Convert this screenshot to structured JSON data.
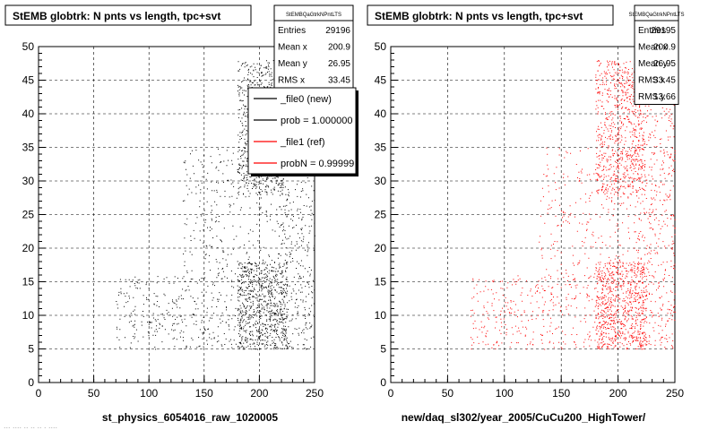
{
  "footer_text": "... .... .. .. .. . ....",
  "colors": {
    "ref_marker": "#000000",
    "new_marker": "#ff0000"
  },
  "chart_data": [
    {
      "type": "scatter",
      "title": "StEMB globtrk: N pnts vs length, tpc+svt",
      "xlabel": "st_physics_6054016_raw_1020005",
      "ylabel": "",
      "xlim": [
        0,
        250
      ],
      "ylim": [
        0,
        50
      ],
      "x_ticks": [
        "0",
        "50",
        "100",
        "150",
        "200",
        "250"
      ],
      "y_ticks": [
        "0",
        "5",
        "10",
        "15",
        "20",
        "25",
        "30",
        "35",
        "40",
        "45",
        "50"
      ],
      "grid": true,
      "marker_color": "#000000",
      "stats": {
        "header": "StEMBQaGtrkNPntLTS",
        "rows": [
          {
            "label": "Entries",
            "value": "29196"
          },
          {
            "label": "Mean x",
            "value": "200.9"
          },
          {
            "label": "Mean y",
            "value": "26.95"
          },
          {
            "label": "RMS x",
            "value": "33.45"
          }
        ]
      },
      "legend": {
        "placement": "top-right",
        "entries": [
          {
            "label": "_file0 (new)",
            "color": "#000000"
          },
          {
            "label": "prob = 1.000000",
            "color": "#000000"
          },
          {
            "label": "_file1 (ref)",
            "color": "#ff0000"
          },
          {
            "label": "probN = 0.99999",
            "color": "#ff0000"
          }
        ]
      },
      "density_regions": [
        {
          "x": [
            180,
            225
          ],
          "y": [
            5,
            18
          ],
          "weight": 0.3
        },
        {
          "x": [
            180,
            222
          ],
          "y": [
            28,
            48
          ],
          "weight": 0.28
        },
        {
          "x": [
            215,
            250
          ],
          "y": [
            5,
            46
          ],
          "weight": 0.2
        },
        {
          "x": [
            70,
            180
          ],
          "y": [
            5,
            16
          ],
          "weight": 0.12
        },
        {
          "x": [
            130,
            215
          ],
          "y": [
            15,
            35
          ],
          "weight": 0.1
        }
      ]
    },
    {
      "type": "scatter",
      "title": "StEMB globtrk: N pnts vs length, tpc+svt",
      "xlabel": "new/daq_sl302/year_2005/CuCu200_HighTower/",
      "ylabel": "",
      "xlim": [
        0,
        250
      ],
      "ylim": [
        0,
        50
      ],
      "x_ticks": [
        "0",
        "50",
        "100",
        "150",
        "200",
        "250"
      ],
      "y_ticks": [
        "0",
        "5",
        "10",
        "15",
        "20",
        "25",
        "30",
        "35",
        "40",
        "45",
        "50"
      ],
      "grid": true,
      "marker_color": "#ff0000",
      "stats": {
        "header": "StEMBQaGtrkNPntLTS",
        "rows": [
          {
            "label": "Entries",
            "value": "29195"
          },
          {
            "label": "Mean x",
            "value": "200.9"
          },
          {
            "label": "Mean y",
            "value": "26.95"
          },
          {
            "label": "RMS x",
            "value": "33.45"
          },
          {
            "label": "RMS y",
            "value": "13.66"
          }
        ]
      },
      "density_regions": [
        {
          "x": [
            180,
            225
          ],
          "y": [
            5,
            18
          ],
          "weight": 0.3
        },
        {
          "x": [
            180,
            222
          ],
          "y": [
            28,
            48
          ],
          "weight": 0.28
        },
        {
          "x": [
            215,
            250
          ],
          "y": [
            5,
            46
          ],
          "weight": 0.2
        },
        {
          "x": [
            70,
            180
          ],
          "y": [
            5,
            16
          ],
          "weight": 0.12
        },
        {
          "x": [
            130,
            215
          ],
          "y": [
            15,
            35
          ],
          "weight": 0.1
        }
      ]
    }
  ]
}
